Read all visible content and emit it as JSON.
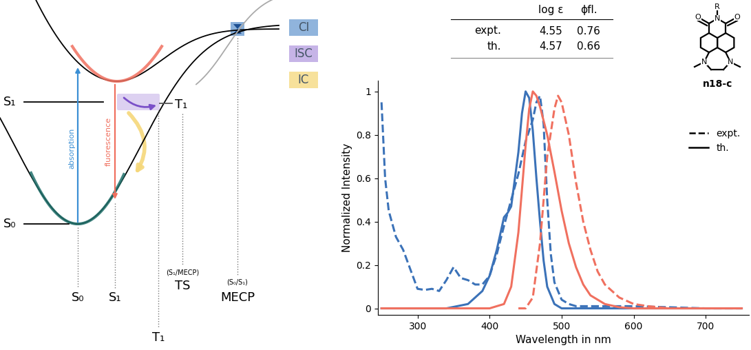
{
  "chart_data": {
    "type": "line",
    "x_label": "Wavelength in nm",
    "y_label": "Normalized Intensity",
    "xlim": [
      245,
      760
    ],
    "xticks": [
      300,
      400,
      500,
      600,
      700
    ],
    "ylim": [
      -0.03,
      1.05
    ],
    "yticks": [
      0,
      0.2,
      0.4,
      0.6,
      0.8,
      1
    ],
    "grid": false,
    "legend": "upper right",
    "series": [
      {
        "name": "expt.",
        "color": "#3b72b8",
        "line_style": "dashed",
        "x": [
          250,
          255,
          260,
          270,
          280,
          290,
          300,
          310,
          320,
          330,
          340,
          350,
          360,
          370,
          380,
          390,
          400,
          410,
          420,
          430,
          440,
          450,
          460,
          465,
          470,
          475,
          480,
          485,
          490,
          500,
          510,
          520,
          600,
          700,
          750
        ],
        "values": [
          0.95,
          0.6,
          0.45,
          0.33,
          0.27,
          0.18,
          0.09,
          0.085,
          0.09,
          0.08,
          0.13,
          0.19,
          0.14,
          0.13,
          0.11,
          0.11,
          0.15,
          0.25,
          0.38,
          0.5,
          0.62,
          0.77,
          0.87,
          0.95,
          0.98,
          0.85,
          0.5,
          0.25,
          0.12,
          0.04,
          0.02,
          0.01,
          0.01,
          0,
          0
        ]
      },
      {
        "name": "th.",
        "color": "#3b72b8",
        "line_style": "solid",
        "x": [
          250,
          340,
          370,
          390,
          400,
          410,
          420,
          425,
          430,
          440,
          445,
          450,
          455,
          460,
          465,
          470,
          475,
          480,
          490,
          500,
          750
        ],
        "values": [
          0,
          0,
          0.02,
          0.08,
          0.15,
          0.27,
          0.42,
          0.44,
          0.47,
          0.72,
          0.9,
          1.0,
          0.97,
          0.82,
          0.6,
          0.4,
          0.22,
          0.1,
          0.02,
          0,
          0
        ]
      },
      {
        "name": "expt.",
        "color": "#f0705f",
        "line_style": "dashed",
        "x": [
          440,
          450,
          460,
          470,
          480,
          490,
          495,
          500,
          510,
          520,
          530,
          540,
          550,
          560,
          580,
          600,
          620,
          650
        ],
        "values": [
          0,
          0,
          0.05,
          0.3,
          0.7,
          0.92,
          0.98,
          0.95,
          0.8,
          0.58,
          0.4,
          0.27,
          0.17,
          0.11,
          0.05,
          0.02,
          0.01,
          0
        ]
      },
      {
        "name": "th.",
        "color": "#f0705f",
        "line_style": "solid",
        "x": [
          250,
          400,
          420,
          430,
          440,
          450,
          455,
          460,
          465,
          470,
          480,
          490,
          500,
          510,
          520,
          530,
          540,
          560,
          580,
          600,
          750
        ],
        "values": [
          0,
          0,
          0.02,
          0.1,
          0.35,
          0.75,
          0.92,
          1.0,
          0.98,
          0.93,
          0.8,
          0.63,
          0.45,
          0.3,
          0.19,
          0.11,
          0.06,
          0.02,
          0.005,
          0,
          0
        ]
      }
    ]
  },
  "table": {
    "header": [
      "log ε",
      "ϕfl."
    ],
    "rows": [
      {
        "label": "expt.",
        "values": [
          4.55,
          0.76
        ]
      },
      {
        "label": "th.",
        "values": [
          4.57,
          0.66
        ]
      }
    ]
  },
  "molecule": {
    "label": "n18-c",
    "imide": {
      "substituent": "R",
      "nitrogen": "N",
      "oxygens": [
        "O",
        "O"
      ]
    },
    "amines": [
      "N",
      "N"
    ]
  },
  "diagram": {
    "legend": [
      {
        "label": "CI",
        "color": "#6b9bd1"
      },
      {
        "label": "ISC",
        "color": "#b49be0"
      },
      {
        "label": "IC",
        "color": "#f5d77a"
      }
    ],
    "levels": [
      "S₀",
      "S₁",
      "T₁"
    ],
    "arrows": [
      {
        "label": "absorption",
        "color": "#3b8fd4"
      },
      {
        "label": "fluorescence",
        "color": "#f0705f"
      }
    ],
    "geometries": [
      {
        "label": "S₀"
      },
      {
        "label": "S₁"
      },
      {
        "label": "T₁"
      },
      {
        "label": "TS",
        "sublabel": "(S₁/MECP)"
      },
      {
        "label": "MECP",
        "sublabel": "(S₀/S₁)"
      }
    ]
  }
}
